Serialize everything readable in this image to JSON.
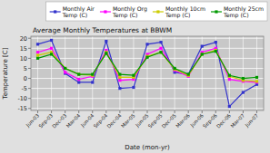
{
  "chart_data": {
    "type": "line",
    "title": "Average Monthly Temperatures at BBWM",
    "x_label": "Date (mon-yr)",
    "y_label": "Temperature [C]",
    "categories": [
      "Jun-03",
      "Sep-03",
      "Dec-03",
      "Mar-04",
      "Jun-04",
      "Sep-04",
      "Dec-04",
      "Mar-05",
      "Jun-05",
      "Sep-05",
      "Dec-05",
      "Mar-06",
      "Jun-06",
      "Sep-06",
      "Dec-06",
      "Mar-07",
      "Jun-07"
    ],
    "series": [
      {
        "name": "Monthly Air\nTemp (C)",
        "color": "#3333CC",
        "marker": "square",
        "values": [
          17,
          19,
          2.5,
          -2,
          -2,
          18.5,
          -5,
          -4.5,
          17,
          18,
          3,
          2,
          16,
          18,
          -14,
          -7,
          -3
        ]
      },
      {
        "name": "Monthly Org\nTemp (C)",
        "color": "#FF00FF",
        "marker": "square",
        "values": [
          13,
          15,
          3,
          -0.5,
          1,
          14,
          -1,
          -0.5,
          12,
          15,
          4,
          1,
          13,
          15,
          -0.5,
          -1.5,
          -2
        ]
      },
      {
        "name": "Monthly 10cm\nTemp (C)",
        "color": "#CCCC00",
        "marker": "square",
        "values": [
          11.5,
          13,
          5,
          2,
          1.5,
          13,
          0.5,
          0.5,
          11,
          13,
          4.5,
          1.5,
          12,
          14,
          1,
          -1,
          -1.5
        ]
      },
      {
        "name": "Monthly 25cm\nTemp (C)",
        "color": "#009900",
        "marker": "square",
        "values": [
          10,
          12,
          5,
          2,
          2,
          12.5,
          2,
          1.5,
          10.5,
          13,
          5,
          2,
          12,
          13.5,
          1.5,
          0,
          0.5
        ]
      }
    ],
    "ylim": [
      -16,
      21
    ],
    "yticks": [
      -15,
      -10,
      -5,
      0,
      5,
      10,
      15,
      20
    ],
    "grid": true,
    "legend": "upper right"
  }
}
